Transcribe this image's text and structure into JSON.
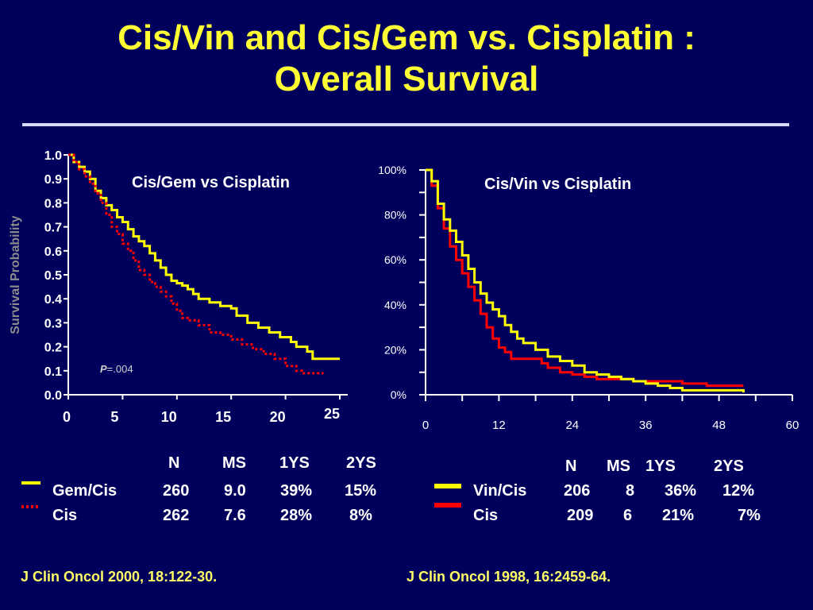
{
  "title": {
    "line1": "Cis/Vin and Cis/Gem vs. Cisplatin :",
    "line2": "Overall Survival"
  },
  "colors": {
    "background": "#00005c",
    "title": "#ffff33",
    "yellow": "#ffff00",
    "red": "#ff0000",
    "axis": "#ffffff"
  },
  "chart_data": [
    {
      "type": "line",
      "title": "Cis/Gem vs Cisplatin",
      "ylabel": "Survival Probability",
      "xlabel": "",
      "xlim": [
        0,
        25
      ],
      "ylim": [
        0,
        1
      ],
      "x_ticks": [
        "0",
        "5",
        "10",
        "15",
        "20",
        "25"
      ],
      "y_ticks": [
        "0.0",
        "0.1",
        "0.2",
        "0.3",
        "0.4",
        "0.5",
        "0.6",
        "0.7",
        "0.8",
        "0.9",
        "1.0"
      ],
      "annotation": {
        "p_label": "P",
        "p_value": "=.004"
      },
      "series": [
        {
          "name": "Gem/Cis",
          "color": "#ffff00",
          "style": "solid",
          "points": [
            [
              0,
              1.0
            ],
            [
              0.5,
              0.97
            ],
            [
              1,
              0.95
            ],
            [
              1.5,
              0.93
            ],
            [
              2,
              0.9
            ],
            [
              2.5,
              0.85
            ],
            [
              3,
              0.82
            ],
            [
              3.5,
              0.79
            ],
            [
              4,
              0.77
            ],
            [
              4.5,
              0.74
            ],
            [
              5,
              0.72
            ],
            [
              5.5,
              0.69
            ],
            [
              6,
              0.66
            ],
            [
              6.5,
              0.64
            ],
            [
              7,
              0.62
            ],
            [
              7.5,
              0.59
            ],
            [
              8,
              0.56
            ],
            [
              8.5,
              0.53
            ],
            [
              9,
              0.5
            ],
            [
              9.5,
              0.475
            ],
            [
              10,
              0.465
            ],
            [
              10.5,
              0.455
            ],
            [
              11,
              0.44
            ],
            [
              11.5,
              0.42
            ],
            [
              12,
              0.4
            ],
            [
              13,
              0.385
            ],
            [
              14,
              0.37
            ],
            [
              15,
              0.36
            ],
            [
              15.5,
              0.33
            ],
            [
              16.5,
              0.3
            ],
            [
              17.5,
              0.28
            ],
            [
              18.5,
              0.26
            ],
            [
              19.5,
              0.24
            ],
            [
              20.5,
              0.22
            ],
            [
              21,
              0.2
            ],
            [
              22,
              0.18
            ],
            [
              22.5,
              0.15
            ],
            [
              23.5,
              0.15
            ],
            [
              25,
              0.15
            ]
          ]
        },
        {
          "name": "Cis",
          "color": "#ff0000",
          "style": "dotted",
          "points": [
            [
              0,
              1.0
            ],
            [
              0.5,
              0.97
            ],
            [
              1,
              0.94
            ],
            [
              1.5,
              0.91
            ],
            [
              2,
              0.88
            ],
            [
              2.5,
              0.84
            ],
            [
              3,
              0.8
            ],
            [
              3.5,
              0.75
            ],
            [
              4,
              0.7
            ],
            [
              4.5,
              0.67
            ],
            [
              5,
              0.63
            ],
            [
              5.5,
              0.6
            ],
            [
              6,
              0.56
            ],
            [
              6.5,
              0.52
            ],
            [
              7,
              0.5
            ],
            [
              7.5,
              0.47
            ],
            [
              8,
              0.45
            ],
            [
              8.5,
              0.43
            ],
            [
              9,
              0.41
            ],
            [
              9.5,
              0.38
            ],
            [
              10,
              0.35
            ],
            [
              10.5,
              0.32
            ],
            [
              11,
              0.31
            ],
            [
              12,
              0.29
            ],
            [
              13,
              0.26
            ],
            [
              14,
              0.25
            ],
            [
              15,
              0.23
            ],
            [
              16,
              0.21
            ],
            [
              17,
              0.19
            ],
            [
              18,
              0.17
            ],
            [
              19,
              0.15
            ],
            [
              20,
              0.12
            ],
            [
              21,
              0.1
            ],
            [
              21.5,
              0.09
            ],
            [
              23.5,
              0.09
            ]
          ]
        }
      ],
      "legend_table": {
        "headers": [
          "N",
          "MS",
          "1YS",
          "2YS"
        ],
        "rows": [
          {
            "label": "Gem/Cis",
            "values": [
              "260",
              "9.0",
              "39%",
              "15%"
            ]
          },
          {
            "label": "Cis",
            "values": [
              "262",
              "7.6",
              "28%",
              "8%"
            ]
          }
        ]
      },
      "reference": "J Clin Oncol 2000, 18:122-30."
    },
    {
      "type": "line",
      "title": "Cis/Vin vs Cisplatin",
      "xlabel": "",
      "ylabel": "",
      "xlim": [
        0,
        60
      ],
      "ylim": [
        0,
        100
      ],
      "x_ticks": [
        "0",
        "12",
        "24",
        "36",
        "48",
        "60"
      ],
      "y_ticks": [
        "0%",
        "20%",
        "40%",
        "60%",
        "80%",
        "100%"
      ],
      "series": [
        {
          "name": "Vin/Cis",
          "color": "#ffff00",
          "style": "solid",
          "points": [
            [
              0,
              100
            ],
            [
              0.5,
              100
            ],
            [
              1,
              95
            ],
            [
              2,
              85
            ],
            [
              3,
              78
            ],
            [
              4,
              73
            ],
            [
              5,
              68
            ],
            [
              6,
              62
            ],
            [
              7,
              56
            ],
            [
              8,
              50
            ],
            [
              9,
              45
            ],
            [
              10,
              41
            ],
            [
              11,
              38
            ],
            [
              12,
              35
            ],
            [
              13,
              31
            ],
            [
              14,
              28
            ],
            [
              15,
              25
            ],
            [
              16,
              23
            ],
            [
              18,
              20
            ],
            [
              20,
              17
            ],
            [
              22,
              15
            ],
            [
              24,
              13
            ],
            [
              26,
              10
            ],
            [
              28,
              9
            ],
            [
              30,
              8
            ],
            [
              32,
              7
            ],
            [
              34,
              6
            ],
            [
              36,
              5
            ],
            [
              38,
              4
            ],
            [
              40,
              3
            ],
            [
              42,
              2
            ],
            [
              48,
              2
            ],
            [
              52,
              1
            ]
          ]
        },
        {
          "name": "Cis",
          "color": "#ff0000",
          "style": "solid",
          "points": [
            [
              0,
              100
            ],
            [
              0.5,
              100
            ],
            [
              1,
              93
            ],
            [
              2,
              83
            ],
            [
              3,
              74
            ],
            [
              4,
              66
            ],
            [
              5,
              60
            ],
            [
              6,
              54
            ],
            [
              7,
              48
            ],
            [
              8,
              42
            ],
            [
              9,
              36
            ],
            [
              10,
              30
            ],
            [
              11,
              25
            ],
            [
              12,
              21
            ],
            [
              13,
              19
            ],
            [
              14,
              16
            ],
            [
              17,
              16
            ],
            [
              19,
              14
            ],
            [
              20,
              12
            ],
            [
              22,
              10
            ],
            [
              24,
              9
            ],
            [
              26,
              8
            ],
            [
              28,
              7
            ],
            [
              30,
              7
            ],
            [
              34,
              6
            ],
            [
              38,
              6
            ],
            [
              42,
              5
            ],
            [
              45,
              5
            ],
            [
              46,
              4
            ],
            [
              52,
              4
            ]
          ]
        }
      ],
      "legend_table": {
        "headers": [
          "N",
          "MS",
          "1YS",
          "2YS"
        ],
        "rows": [
          {
            "label": "Vin/Cis",
            "values": [
              "206",
              "8",
              "36%",
              "12%"
            ]
          },
          {
            "label": "Cis",
            "values": [
              "209",
              "6",
              "21%",
              "7%"
            ]
          }
        ]
      },
      "reference": "J Clin Oncol 1998, 16:2459-64."
    }
  ]
}
